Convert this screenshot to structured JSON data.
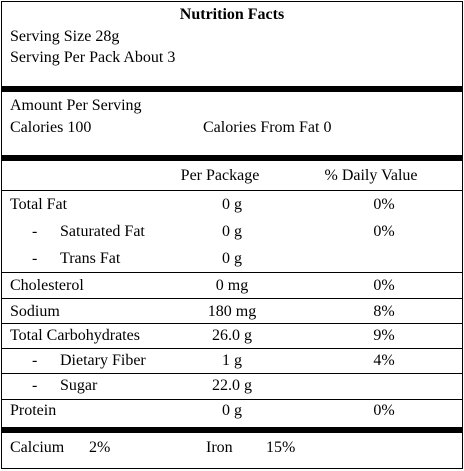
{
  "header": {
    "title": "Nutrition Facts"
  },
  "serving": {
    "size": "Serving Size 28g",
    "per_pack": "Serving Per Pack About 3"
  },
  "amount": {
    "heading": "Amount Per Serving",
    "calories": "Calories 100",
    "calories_from_fat": "Calories From Fat 0"
  },
  "table": {
    "columns": [
      "Per Package",
      "% Daily Value"
    ],
    "rows": [
      {
        "name": "Total Fat",
        "amount": "0 g",
        "daily_value": "0%"
      },
      {
        "marker": "-",
        "name": "Saturated Fat",
        "amount": "0 g",
        "daily_value": "0%"
      },
      {
        "marker": "-",
        "name": "Trans Fat",
        "amount": "0 g"
      },
      {
        "name": "Cholesterol",
        "amount": "0 mg",
        "daily_value": "0%"
      },
      {
        "name": "Sodium",
        "amount": "180 mg",
        "daily_value": "8%"
      },
      {
        "name": "Total Carbohydrates",
        "amount": "26.0 g",
        "daily_value": "9%"
      },
      {
        "marker": "-",
        "name": "Dietary Fiber",
        "amount": "1 g",
        "daily_value": "4%"
      },
      {
        "marker": "-",
        "name": "Sugar",
        "amount": "22.0 g"
      },
      {
        "name": "Protein",
        "amount": "0 g",
        "daily_value": "0%"
      }
    ]
  },
  "footer": {
    "calcium_label": "Calcium",
    "calcium_value": "2%",
    "iron_label": "Iron",
    "iron_value": "15%"
  }
}
